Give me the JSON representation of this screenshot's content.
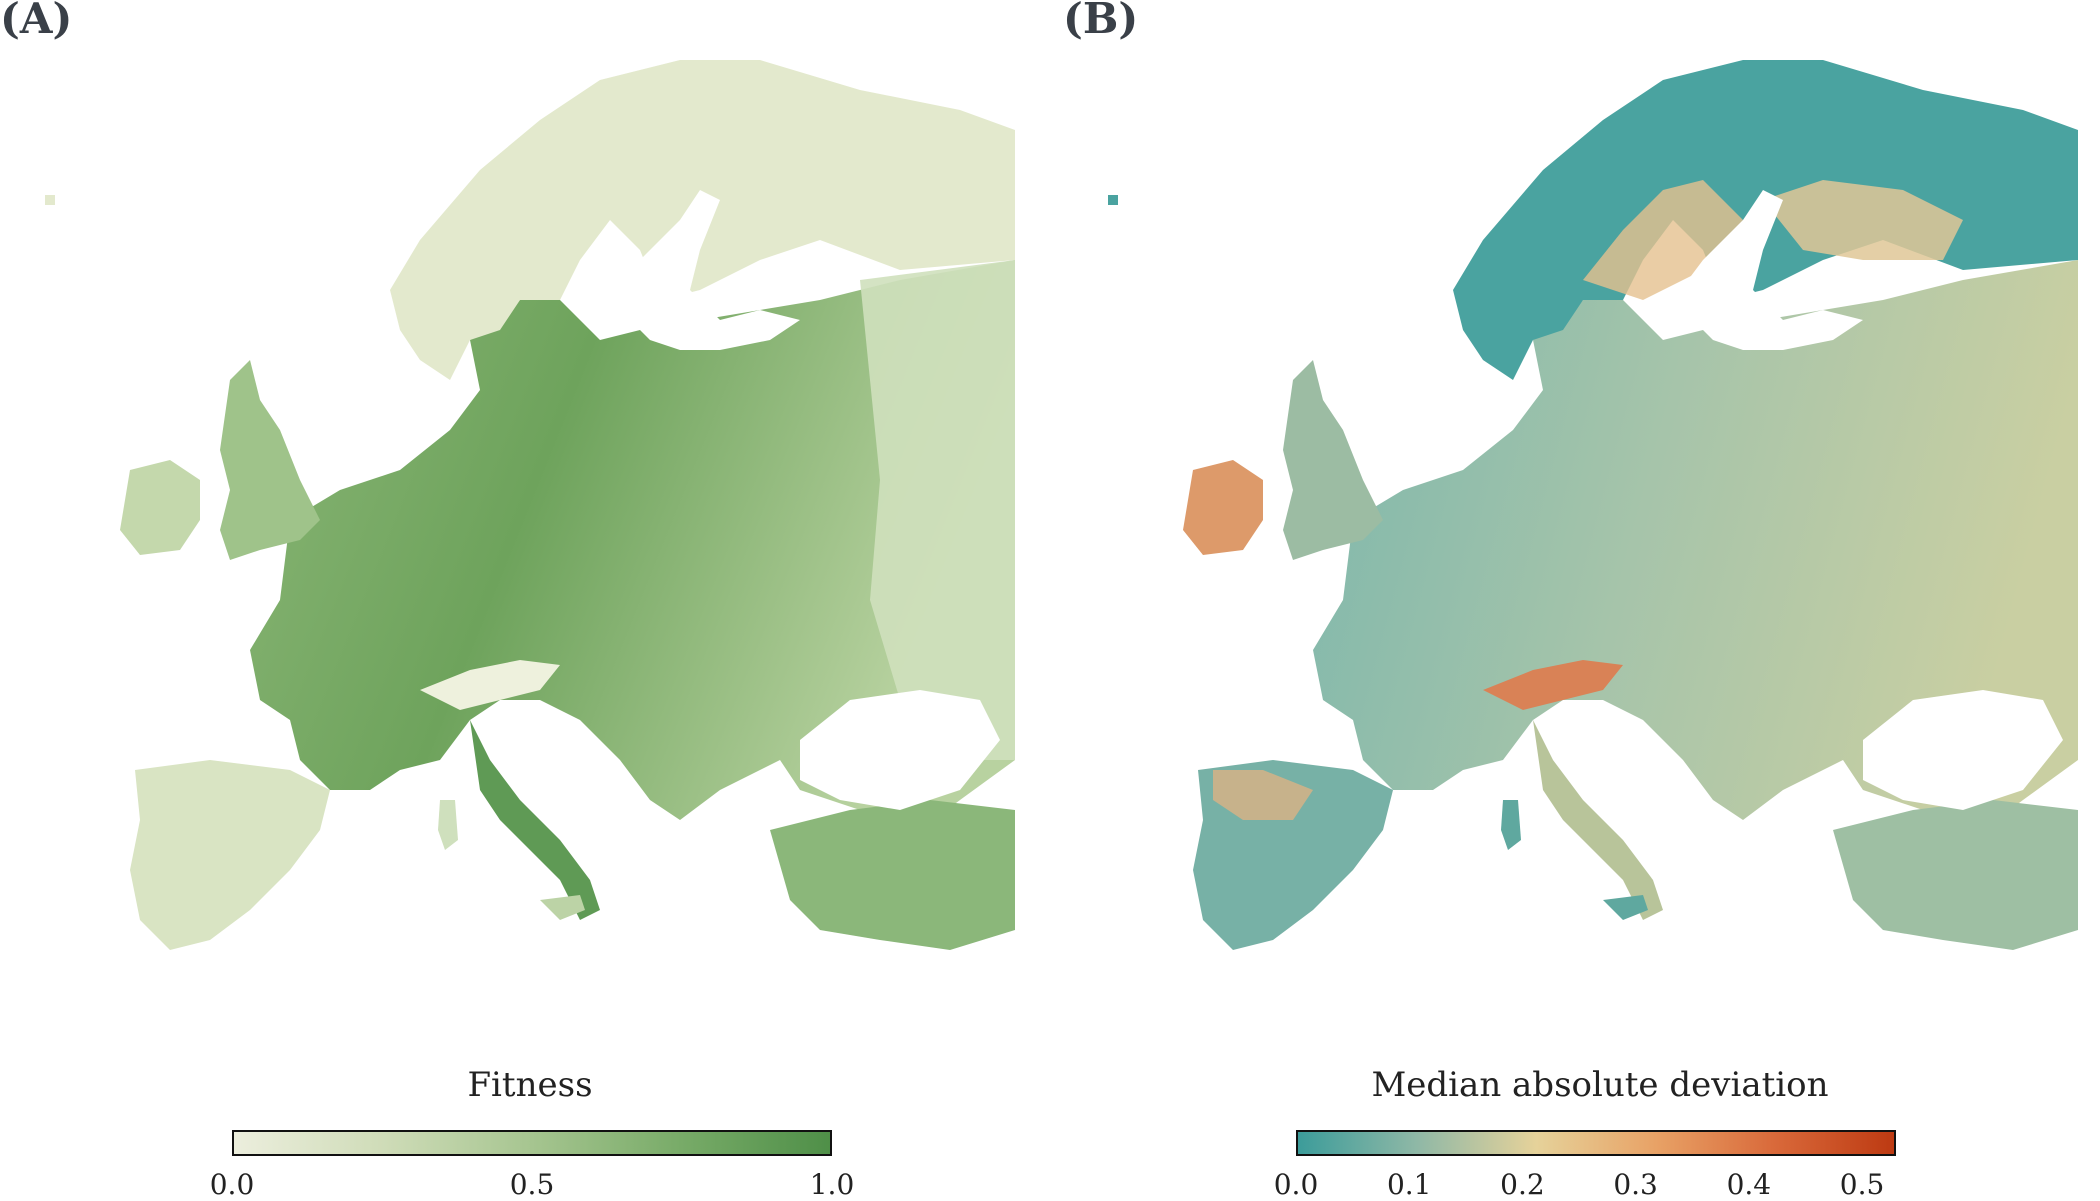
{
  "panels": [
    {
      "tag": "(A)",
      "legend_title": "Fitness",
      "ticks": [
        "0.0",
        "0.5",
        "1.0"
      ],
      "tick_values": [
        0.0,
        0.5,
        1.0
      ],
      "range": [
        0.0,
        1.0
      ],
      "colormap": [
        "#eceedd",
        "#cfdcb8",
        "#a6c590",
        "#78ab68",
        "#4f8f48"
      ]
    },
    {
      "tag": "(B)",
      "legend_title": "Median absolute deviation",
      "ticks": [
        "0.0",
        "0.1",
        "0.2",
        "0.3",
        "0.4",
        "0.5"
      ],
      "tick_values": [
        0.0,
        0.1,
        0.2,
        0.3,
        0.4,
        0.5
      ],
      "range": [
        0.0,
        0.53
      ],
      "colormap": [
        "#3c9c9a",
        "#8fb8a6",
        "#e6d29a",
        "#e8a266",
        "#d9693a",
        "#bd3a12"
      ]
    }
  ],
  "colors": {
    "sea": "#ffffff",
    "land_a": "#a8c892",
    "land_a_dark": "#5f9a55",
    "land_a_light": "#e7ecd4",
    "land_b": "#6fb0a6",
    "land_b_teal": "#3f9f9c",
    "land_b_warm": "#e7c48f",
    "land_b_hot": "#d96a3a"
  }
}
